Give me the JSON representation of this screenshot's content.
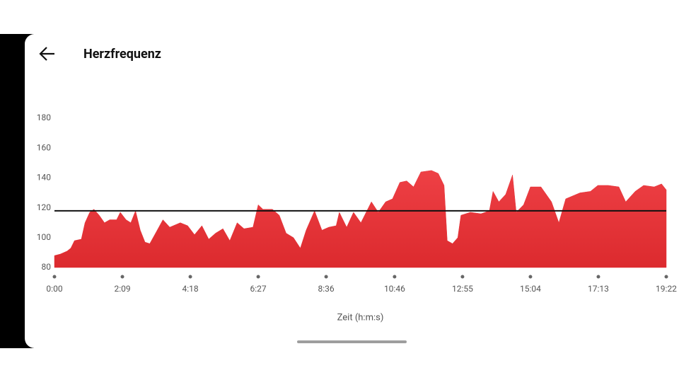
{
  "header": {
    "title": "Herzfrequenz"
  },
  "chart_data": {
    "type": "area",
    "xlabel": "Zeit (h:m:s)",
    "color": "#e5333a",
    "x": [
      0,
      11,
      24,
      31,
      38,
      51,
      58,
      67,
      75,
      85,
      95,
      105,
      118,
      125,
      136,
      145,
      154,
      163,
      172,
      181,
      192,
      206,
      219,
      239,
      253,
      266,
      280,
      293,
      306,
      320,
      333,
      347,
      360,
      377,
      387,
      396,
      414,
      427,
      440,
      454,
      467,
      478,
      494,
      508,
      521,
      535,
      541,
      555,
      568,
      582,
      602,
      615,
      629,
      642,
      656,
      669,
      682,
      696,
      716,
      729,
      740,
      746,
      756,
      766,
      772,
      790,
      810,
      826,
      833,
      844,
      857,
      870,
      877,
      891,
      904,
      924,
      944,
      958,
      971,
      998,
      1018,
      1032,
      1052,
      1072,
      1085,
      1103,
      1119,
      1139,
      1153,
      1162
    ],
    "values": [
      88,
      89,
      91,
      93,
      98,
      99,
      110,
      117,
      119,
      115,
      110,
      112,
      112,
      117,
      112,
      110,
      118,
      105,
      97,
      96,
      103,
      112,
      107,
      110,
      108,
      102,
      108,
      99,
      103,
      106,
      98,
      110,
      106,
      107,
      122,
      119,
      119,
      115,
      103,
      100,
      93,
      105,
      118,
      105,
      107,
      108,
      117,
      107,
      117,
      110,
      124,
      117,
      124,
      126,
      137,
      138,
      134,
      144,
      145,
      143,
      135,
      98,
      96,
      100,
      115,
      117,
      116,
      118,
      131,
      124,
      129,
      142,
      117,
      122,
      134,
      134,
      124,
      110,
      126,
      130,
      131,
      135,
      135,
      134,
      124,
      131,
      135,
      134,
      136,
      132
    ],
    "reference_line": 118,
    "xlim": [
      0,
      1162
    ],
    "ylim": [
      80,
      180
    ],
    "yticks": [
      80,
      100,
      120,
      140,
      160,
      180
    ],
    "xticks": [
      {
        "value": 0,
        "label": "0:00"
      },
      {
        "value": 129,
        "label": "2:09"
      },
      {
        "value": 258,
        "label": "4:18"
      },
      {
        "value": 387,
        "label": "6:27"
      },
      {
        "value": 516,
        "label": "8:36"
      },
      {
        "value": 646,
        "label": "10:46"
      },
      {
        "value": 775,
        "label": "12:55"
      },
      {
        "value": 904,
        "label": "15:04"
      },
      {
        "value": 1033,
        "label": "17:13"
      },
      {
        "value": 1162,
        "label": "19:22"
      }
    ]
  }
}
